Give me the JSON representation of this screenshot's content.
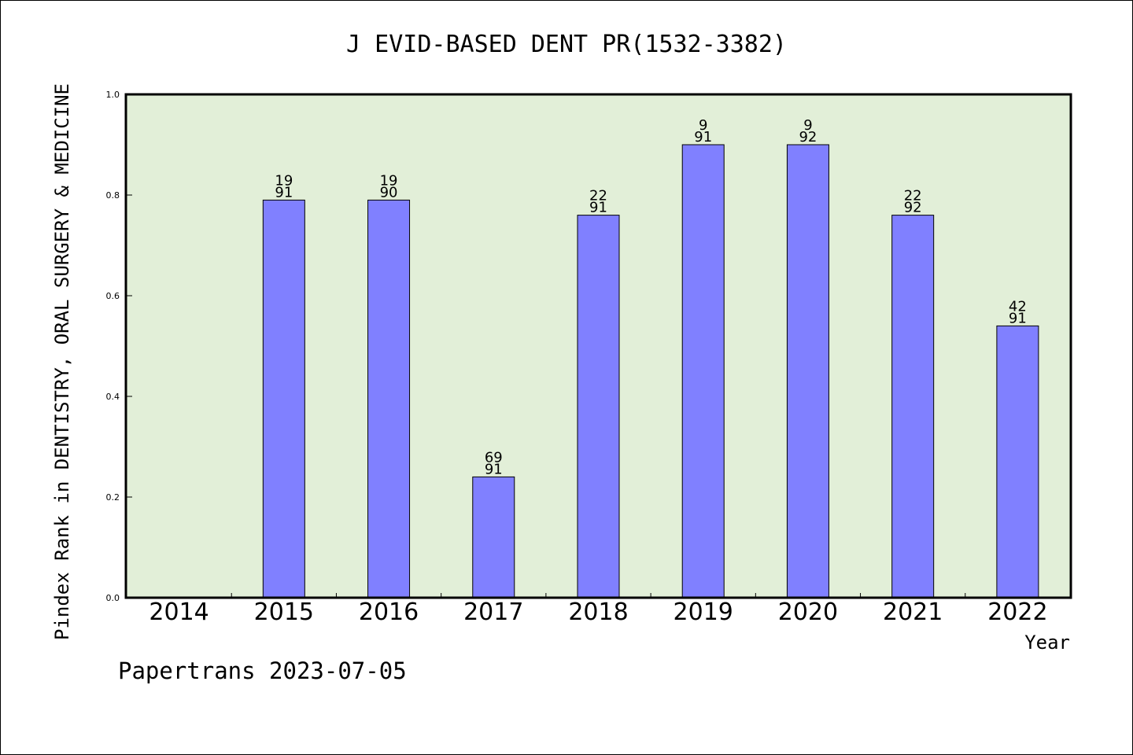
{
  "chart_data": {
    "type": "bar",
    "title": "J EVID-BASED DENT PR(1532-3382)",
    "xlabel": "Year",
    "ylabel": "Pindex Rank in DENTISTRY, ORAL SURGERY & MEDICINE",
    "ylim": [
      0,
      1.0
    ],
    "yticks": [
      "0.0",
      "0.2",
      "0.4",
      "0.6",
      "0.8",
      "1.0"
    ],
    "categories": [
      "2014",
      "2015",
      "2016",
      "2017",
      "2018",
      "2019",
      "2020",
      "2021",
      "2022"
    ],
    "values": [
      0,
      0.79,
      0.79,
      0.24,
      0.76,
      0.9,
      0.9,
      0.76,
      0.54
    ],
    "rank_labels": [
      "",
      "19",
      "19",
      "69",
      "22",
      "9",
      "9",
      "22",
      "42"
    ],
    "total_labels": [
      "",
      "91",
      "90",
      "91",
      "91",
      "91",
      "92",
      "92",
      "91"
    ],
    "bar_color": "#8080ff",
    "plot_background": "#e2efd8",
    "grid": false,
    "legend": "none"
  },
  "footer": {
    "source": "Papertrans 2023-07-05"
  }
}
